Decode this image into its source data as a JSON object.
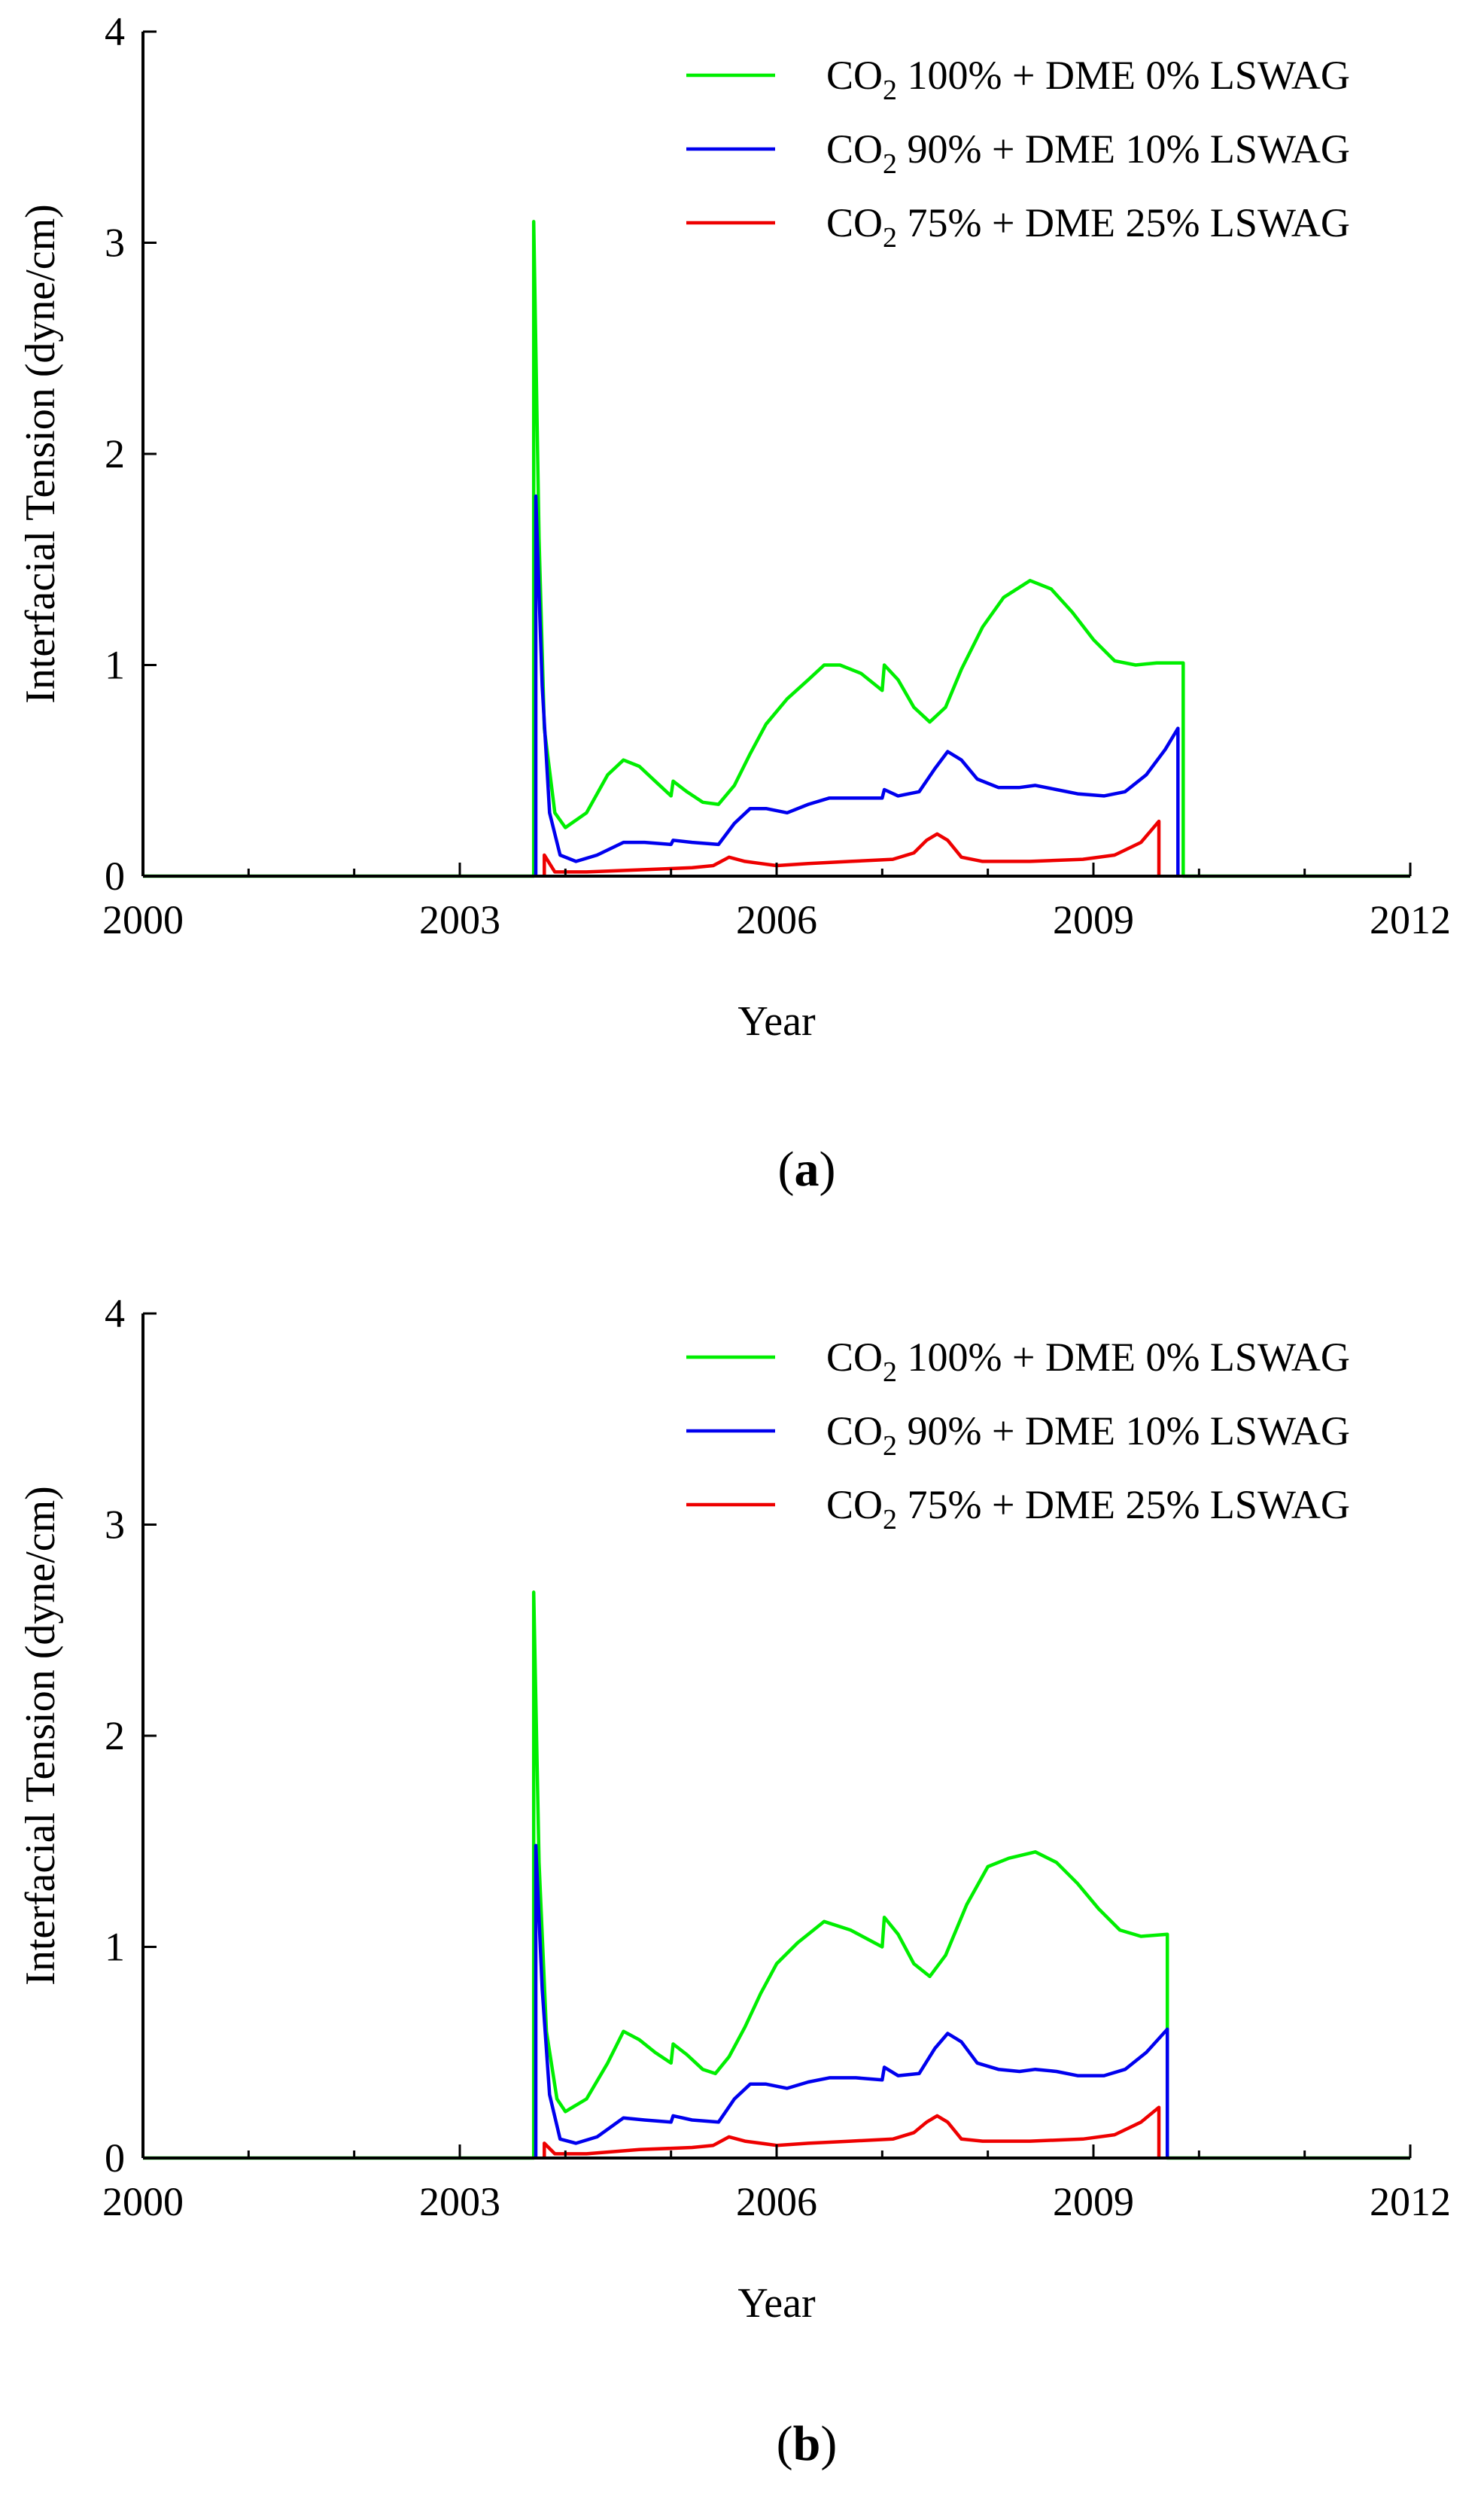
{
  "chart_data": [
    {
      "type": "line",
      "panel": "a",
      "caption": "(a)",
      "title": "",
      "xlabel": "Year",
      "ylabel": "Interfacial Tension (dyne/cm)",
      "xlim": [
        2000,
        2012
      ],
      "ylim": [
        0,
        4
      ],
      "xticks": [
        2000,
        2003,
        2006,
        2009,
        2012
      ],
      "xtick_labels": [
        "2000",
        "2003",
        "2006",
        "2009",
        "2012"
      ],
      "yticks": [
        0,
        1,
        2,
        3,
        4
      ],
      "ytick_labels": [
        "0",
        "1",
        "2",
        "3",
        "4"
      ],
      "x_minor_step": 1,
      "legend_position": "top-right",
      "series": [
        {
          "name_prefix": "CO",
          "name_sub": "2",
          "name_suffix": " 100% + DME 0% LSWAG",
          "color": "#00ee00",
          "points": [
            [
              2000,
              0
            ],
            [
              2003.7,
              0
            ],
            [
              2003.7,
              3.1
            ],
            [
              2003.75,
              1.6
            ],
            [
              2003.8,
              0.7
            ],
            [
              2003.9,
              0.3
            ],
            [
              2004,
              0.23
            ],
            [
              2004.2,
              0.3
            ],
            [
              2004.4,
              0.48
            ],
            [
              2004.55,
              0.55
            ],
            [
              2004.7,
              0.52
            ],
            [
              2004.85,
              0.45
            ],
            [
              2005,
              0.38
            ],
            [
              2005.02,
              0.45
            ],
            [
              2005.15,
              0.4
            ],
            [
              2005.3,
              0.35
            ],
            [
              2005.45,
              0.34
            ],
            [
              2005.6,
              0.43
            ],
            [
              2005.75,
              0.58
            ],
            [
              2005.9,
              0.72
            ],
            [
              2006.1,
              0.84
            ],
            [
              2006.3,
              0.93
            ],
            [
              2006.45,
              1.0
            ],
            [
              2006.6,
              1.0
            ],
            [
              2006.8,
              0.96
            ],
            [
              2007,
              0.88
            ],
            [
              2007.02,
              1.0
            ],
            [
              2007.15,
              0.93
            ],
            [
              2007.3,
              0.8
            ],
            [
              2007.45,
              0.73
            ],
            [
              2007.6,
              0.8
            ],
            [
              2007.75,
              0.98
            ],
            [
              2007.95,
              1.18
            ],
            [
              2008.15,
              1.32
            ],
            [
              2008.4,
              1.4
            ],
            [
              2008.6,
              1.36
            ],
            [
              2008.8,
              1.25
            ],
            [
              2009,
              1.12
            ],
            [
              2009.2,
              1.02
            ],
            [
              2009.4,
              1.0
            ],
            [
              2009.6,
              1.01
            ],
            [
              2009.85,
              1.01
            ],
            [
              2009.85,
              0
            ],
            [
              2012,
              0
            ]
          ]
        },
        {
          "name_prefix": "CO",
          "name_sub": "2",
          "name_suffix": " 90% + DME 10% LSWAG",
          "color": "#0000ee",
          "points": [
            [
              2003.72,
              0
            ],
            [
              2003.72,
              1.8
            ],
            [
              2003.78,
              0.9
            ],
            [
              2003.85,
              0.3
            ],
            [
              2003.95,
              0.1
            ],
            [
              2004.1,
              0.07
            ],
            [
              2004.3,
              0.1
            ],
            [
              2004.55,
              0.16
            ],
            [
              2004.75,
              0.16
            ],
            [
              2005,
              0.15
            ],
            [
              2005.02,
              0.17
            ],
            [
              2005.2,
              0.16
            ],
            [
              2005.45,
              0.15
            ],
            [
              2005.6,
              0.25
            ],
            [
              2005.75,
              0.32
            ],
            [
              2005.9,
              0.32
            ],
            [
              2006.1,
              0.3
            ],
            [
              2006.3,
              0.34
            ],
            [
              2006.5,
              0.37
            ],
            [
              2006.75,
              0.37
            ],
            [
              2007,
              0.37
            ],
            [
              2007.02,
              0.41
            ],
            [
              2007.15,
              0.38
            ],
            [
              2007.35,
              0.4
            ],
            [
              2007.5,
              0.51
            ],
            [
              2007.62,
              0.59
            ],
            [
              2007.75,
              0.55
            ],
            [
              2007.9,
              0.46
            ],
            [
              2008.1,
              0.42
            ],
            [
              2008.3,
              0.42
            ],
            [
              2008.45,
              0.43
            ],
            [
              2008.65,
              0.41
            ],
            [
              2008.85,
              0.39
            ],
            [
              2009.1,
              0.38
            ],
            [
              2009.3,
              0.4
            ],
            [
              2009.5,
              0.48
            ],
            [
              2009.68,
              0.6
            ],
            [
              2009.8,
              0.7
            ],
            [
              2009.8,
              0
            ],
            [
              2009.8,
              0
            ]
          ]
        },
        {
          "name_prefix": "CO",
          "name_sub": "2",
          "name_suffix": " 75% + DME 25% LSWAG",
          "color": "#ee0000",
          "points": [
            [
              2003.8,
              0
            ],
            [
              2003.8,
              0.1
            ],
            [
              2003.9,
              0.02
            ],
            [
              2004.2,
              0.02
            ],
            [
              2004.7,
              0.03
            ],
            [
              2005.2,
              0.04
            ],
            [
              2005.4,
              0.05
            ],
            [
              2005.55,
              0.09
            ],
            [
              2005.7,
              0.07
            ],
            [
              2006,
              0.05
            ],
            [
              2006.3,
              0.06
            ],
            [
              2006.7,
              0.07
            ],
            [
              2007.1,
              0.08
            ],
            [
              2007.3,
              0.11
            ],
            [
              2007.42,
              0.17
            ],
            [
              2007.52,
              0.2
            ],
            [
              2007.62,
              0.17
            ],
            [
              2007.75,
              0.09
            ],
            [
              2007.95,
              0.07
            ],
            [
              2008.4,
              0.07
            ],
            [
              2008.9,
              0.08
            ],
            [
              2009.2,
              0.1
            ],
            [
              2009.45,
              0.16
            ],
            [
              2009.62,
              0.26
            ],
            [
              2009.62,
              0
            ],
            [
              2009.62,
              0
            ]
          ]
        }
      ]
    },
    {
      "type": "line",
      "panel": "b",
      "caption": "(b)",
      "title": "",
      "xlabel": "Year",
      "ylabel": "Interfacial Tension (dyne/cm)",
      "xlim": [
        2000,
        2012
      ],
      "ylim": [
        0,
        4
      ],
      "xticks": [
        2000,
        2003,
        2006,
        2009,
        2012
      ],
      "xtick_labels": [
        "2000",
        "2003",
        "2006",
        "2009",
        "2012"
      ],
      "yticks": [
        0,
        1,
        2,
        3,
        4
      ],
      "ytick_labels": [
        "0",
        "1",
        "2",
        "3",
        "4"
      ],
      "x_minor_step": 1,
      "legend_position": "top-right",
      "series": [
        {
          "name_prefix": "CO",
          "name_sub": "2",
          "name_suffix": " 100% + DME 0% LSWAG",
          "color": "#00ee00",
          "points": [
            [
              2000,
              0
            ],
            [
              2003.7,
              0
            ],
            [
              2003.7,
              2.68
            ],
            [
              2003.75,
              1.4
            ],
            [
              2003.82,
              0.6
            ],
            [
              2003.92,
              0.28
            ],
            [
              2004,
              0.22
            ],
            [
              2004.2,
              0.28
            ],
            [
              2004.4,
              0.45
            ],
            [
              2004.55,
              0.6
            ],
            [
              2004.7,
              0.56
            ],
            [
              2004.85,
              0.5
            ],
            [
              2005,
              0.45
            ],
            [
              2005.02,
              0.54
            ],
            [
              2005.15,
              0.49
            ],
            [
              2005.3,
              0.42
            ],
            [
              2005.42,
              0.4
            ],
            [
              2005.55,
              0.48
            ],
            [
              2005.7,
              0.62
            ],
            [
              2005.85,
              0.78
            ],
            [
              2006,
              0.92
            ],
            [
              2006.2,
              1.02
            ],
            [
              2006.45,
              1.12
            ],
            [
              2006.7,
              1.08
            ],
            [
              2007,
              1.0
            ],
            [
              2007.02,
              1.14
            ],
            [
              2007.15,
              1.06
            ],
            [
              2007.3,
              0.92
            ],
            [
              2007.45,
              0.86
            ],
            [
              2007.6,
              0.96
            ],
            [
              2007.8,
              1.2
            ],
            [
              2008,
              1.38
            ],
            [
              2008.2,
              1.42
            ],
            [
              2008.45,
              1.45
            ],
            [
              2008.65,
              1.4
            ],
            [
              2008.85,
              1.3
            ],
            [
              2009.05,
              1.18
            ],
            [
              2009.25,
              1.08
            ],
            [
              2009.45,
              1.05
            ],
            [
              2009.7,
              1.06
            ],
            [
              2009.7,
              0
            ],
            [
              2012,
              0
            ]
          ]
        },
        {
          "name_prefix": "CO",
          "name_sub": "2",
          "name_suffix": " 90% + DME 10% LSWAG",
          "color": "#0000ee",
          "points": [
            [
              2003.72,
              0
            ],
            [
              2003.72,
              1.48
            ],
            [
              2003.78,
              0.8
            ],
            [
              2003.85,
              0.3
            ],
            [
              2003.95,
              0.09
            ],
            [
              2004.1,
              0.07
            ],
            [
              2004.3,
              0.1
            ],
            [
              2004.55,
              0.19
            ],
            [
              2004.75,
              0.18
            ],
            [
              2005,
              0.17
            ],
            [
              2005.02,
              0.2
            ],
            [
              2005.2,
              0.18
            ],
            [
              2005.45,
              0.17
            ],
            [
              2005.6,
              0.28
            ],
            [
              2005.75,
              0.35
            ],
            [
              2005.9,
              0.35
            ],
            [
              2006.1,
              0.33
            ],
            [
              2006.3,
              0.36
            ],
            [
              2006.5,
              0.38
            ],
            [
              2006.75,
              0.38
            ],
            [
              2007,
              0.37
            ],
            [
              2007.02,
              0.43
            ],
            [
              2007.15,
              0.39
            ],
            [
              2007.35,
              0.4
            ],
            [
              2007.5,
              0.52
            ],
            [
              2007.62,
              0.59
            ],
            [
              2007.75,
              0.55
            ],
            [
              2007.9,
              0.45
            ],
            [
              2008.1,
              0.42
            ],
            [
              2008.3,
              0.41
            ],
            [
              2008.45,
              0.42
            ],
            [
              2008.65,
              0.41
            ],
            [
              2008.85,
              0.39
            ],
            [
              2009.1,
              0.39
            ],
            [
              2009.3,
              0.42
            ],
            [
              2009.5,
              0.5
            ],
            [
              2009.7,
              0.61
            ],
            [
              2009.7,
              0
            ],
            [
              2009.7,
              0
            ]
          ]
        },
        {
          "name_prefix": "CO",
          "name_sub": "2",
          "name_suffix": " 75% + DME 25% LSWAG",
          "color": "#ee0000",
          "points": [
            [
              2003.8,
              0
            ],
            [
              2003.8,
              0.07
            ],
            [
              2003.9,
              0.02
            ],
            [
              2004.2,
              0.02
            ],
            [
              2004.7,
              0.04
            ],
            [
              2005.2,
              0.05
            ],
            [
              2005.4,
              0.06
            ],
            [
              2005.55,
              0.1
            ],
            [
              2005.7,
              0.08
            ],
            [
              2006,
              0.06
            ],
            [
              2006.3,
              0.07
            ],
            [
              2006.7,
              0.08
            ],
            [
              2007.1,
              0.09
            ],
            [
              2007.3,
              0.12
            ],
            [
              2007.42,
              0.17
            ],
            [
              2007.52,
              0.2
            ],
            [
              2007.62,
              0.17
            ],
            [
              2007.75,
              0.09
            ],
            [
              2007.95,
              0.08
            ],
            [
              2008.4,
              0.08
            ],
            [
              2008.9,
              0.09
            ],
            [
              2009.2,
              0.11
            ],
            [
              2009.45,
              0.17
            ],
            [
              2009.62,
              0.24
            ],
            [
              2009.62,
              0
            ],
            [
              2009.62,
              0
            ]
          ]
        }
      ]
    }
  ]
}
